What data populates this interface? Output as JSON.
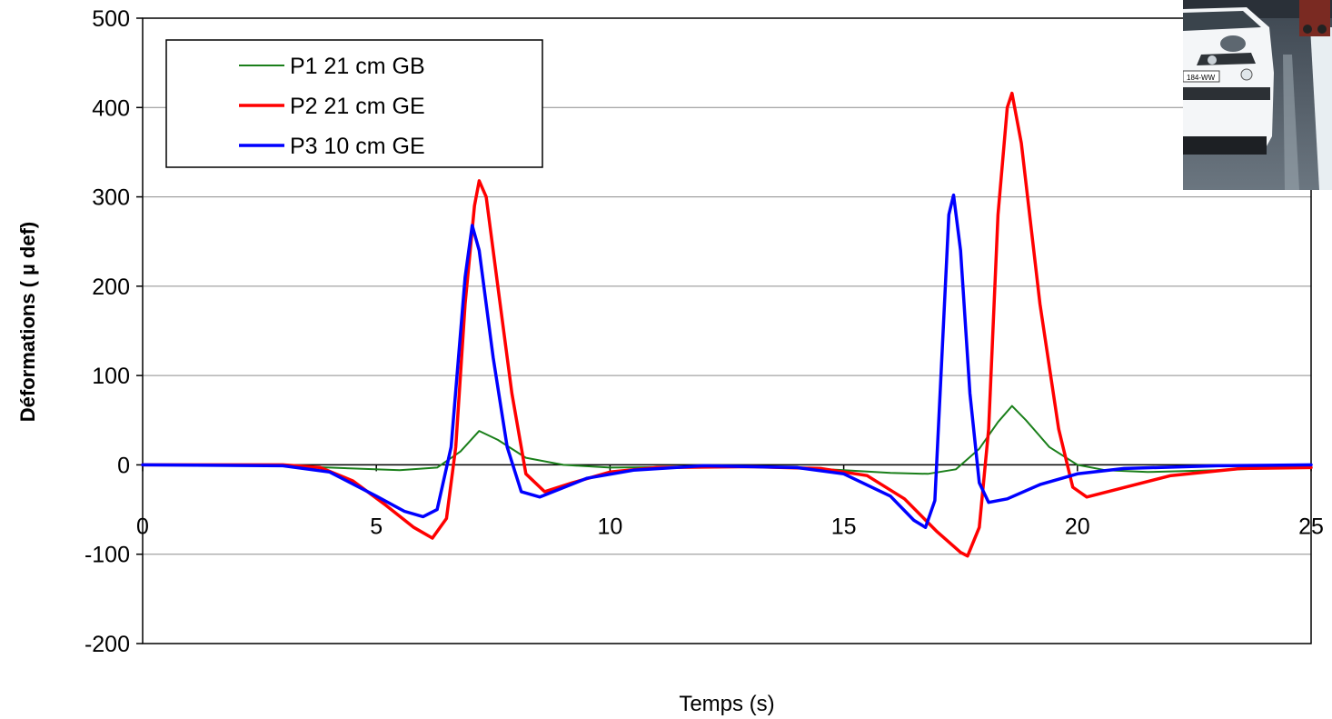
{
  "chart_data": {
    "type": "line",
    "xlabel": "Temps (s)",
    "ylabel": "Déformations ( µ def)",
    "xlim": [
      0,
      25
    ],
    "ylim": [
      -200,
      500
    ],
    "x_ticks": [
      0,
      5,
      10,
      15,
      20,
      25
    ],
    "y_ticks": [
      500,
      400,
      300,
      200,
      100,
      0,
      -100,
      -200
    ],
    "x_tick_labels": [
      "0",
      "5",
      "10",
      "15",
      "20",
      "25"
    ],
    "y_tick_labels": [
      "500",
      "400",
      "300",
      "200",
      "100",
      "0",
      "-100",
      "-200"
    ],
    "grid": "horizontal",
    "legend_position": "top-left",
    "series": [
      {
        "name": "P1 21 cm GB",
        "color": "#1a7f1a",
        "points": [
          [
            0,
            0
          ],
          [
            3,
            -1
          ],
          [
            4.5,
            -4
          ],
          [
            5.5,
            -6
          ],
          [
            6.3,
            -3
          ],
          [
            6.8,
            15
          ],
          [
            7.2,
            38
          ],
          [
            7.6,
            28
          ],
          [
            8.2,
            8
          ],
          [
            9,
            0
          ],
          [
            10,
            -3
          ],
          [
            12,
            -2
          ],
          [
            14,
            -3
          ],
          [
            15,
            -6
          ],
          [
            16,
            -9
          ],
          [
            16.8,
            -10
          ],
          [
            17.4,
            -5
          ],
          [
            17.9,
            18
          ],
          [
            18.3,
            48
          ],
          [
            18.6,
            66
          ],
          [
            18.9,
            50
          ],
          [
            19.4,
            20
          ],
          [
            20,
            0
          ],
          [
            20.6,
            -6
          ],
          [
            21.5,
            -8
          ],
          [
            23,
            -6
          ],
          [
            25,
            -2
          ]
        ]
      },
      {
        "name": "P2 21 cm GE",
        "color": "#ff0000",
        "points": [
          [
            0,
            0
          ],
          [
            3,
            0
          ],
          [
            3.8,
            -3
          ],
          [
            4.5,
            -18
          ],
          [
            5.2,
            -45
          ],
          [
            5.8,
            -70
          ],
          [
            6.2,
            -82
          ],
          [
            6.5,
            -60
          ],
          [
            6.7,
            20
          ],
          [
            6.9,
            180
          ],
          [
            7.1,
            290
          ],
          [
            7.2,
            318
          ],
          [
            7.35,
            300
          ],
          [
            7.6,
            200
          ],
          [
            7.9,
            80
          ],
          [
            8.2,
            -10
          ],
          [
            8.6,
            -30
          ],
          [
            9.2,
            -20
          ],
          [
            10,
            -8
          ],
          [
            11,
            -3
          ],
          [
            13,
            -2
          ],
          [
            14.5,
            -4
          ],
          [
            15.5,
            -12
          ],
          [
            16.3,
            -38
          ],
          [
            17,
            -75
          ],
          [
            17.5,
            -98
          ],
          [
            17.65,
            -102
          ],
          [
            17.9,
            -70
          ],
          [
            18.1,
            40
          ],
          [
            18.3,
            280
          ],
          [
            18.5,
            400
          ],
          [
            18.6,
            416
          ],
          [
            18.8,
            360
          ],
          [
            19.2,
            180
          ],
          [
            19.6,
            40
          ],
          [
            19.9,
            -25
          ],
          [
            20.2,
            -36
          ],
          [
            20.8,
            -28
          ],
          [
            22,
            -12
          ],
          [
            23.5,
            -4
          ],
          [
            25,
            -3
          ]
        ]
      },
      {
        "name": "P3 10 cm GE",
        "color": "#0000ff",
        "points": [
          [
            0,
            0
          ],
          [
            3,
            -1
          ],
          [
            4,
            -8
          ],
          [
            5,
            -35
          ],
          [
            5.6,
            -52
          ],
          [
            6,
            -58
          ],
          [
            6.3,
            -50
          ],
          [
            6.6,
            20
          ],
          [
            6.9,
            210
          ],
          [
            7.05,
            268
          ],
          [
            7.2,
            240
          ],
          [
            7.5,
            120
          ],
          [
            7.8,
            20
          ],
          [
            8.1,
            -30
          ],
          [
            8.5,
            -36
          ],
          [
            9.5,
            -15
          ],
          [
            10.5,
            -6
          ],
          [
            12,
            -1
          ],
          [
            14,
            -3
          ],
          [
            15,
            -10
          ],
          [
            16,
            -35
          ],
          [
            16.5,
            -62
          ],
          [
            16.75,
            -70
          ],
          [
            16.95,
            -40
          ],
          [
            17.1,
            120
          ],
          [
            17.25,
            280
          ],
          [
            17.35,
            302
          ],
          [
            17.5,
            240
          ],
          [
            17.7,
            80
          ],
          [
            17.9,
            -20
          ],
          [
            18.1,
            -42
          ],
          [
            18.5,
            -38
          ],
          [
            19.2,
            -22
          ],
          [
            20,
            -10
          ],
          [
            21,
            -4
          ],
          [
            23,
            -1
          ],
          [
            25,
            0
          ]
        ]
      }
    ]
  },
  "photo": {
    "description_icon": "vehicle-photo",
    "plate_text": "184-WW"
  }
}
